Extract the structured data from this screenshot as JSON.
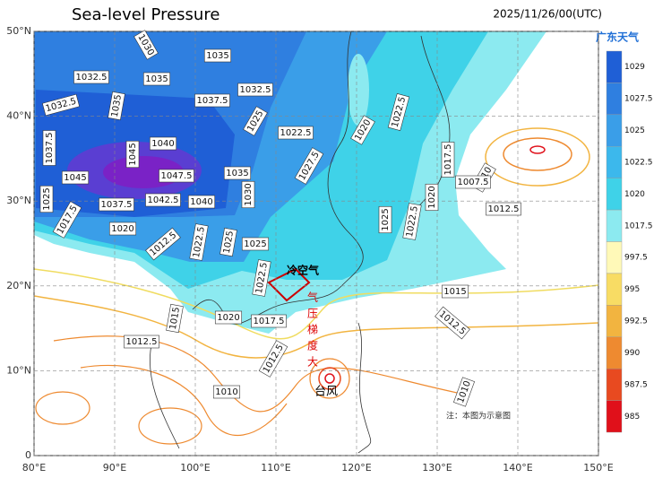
{
  "header": {
    "title": "Sea-level Pressure",
    "time": "2025/11/26/00(UTC)",
    "logo": "广东天气"
  },
  "map": {
    "lon_ticks": [
      {
        "value": 80,
        "label": "80°E"
      },
      {
        "value": 90,
        "label": "90°E"
      },
      {
        "value": 100,
        "label": "100°E"
      },
      {
        "value": 110,
        "label": "110°E"
      },
      {
        "value": 120,
        "label": "120°E"
      },
      {
        "value": 130,
        "label": "130°E"
      },
      {
        "value": 140,
        "label": "140°E"
      },
      {
        "value": 150,
        "label": "150°E"
      }
    ],
    "lat_ticks": [
      {
        "value": 50,
        "label": "50°N"
      },
      {
        "value": 40,
        "label": "40°N"
      },
      {
        "value": 30,
        "label": "30°N"
      },
      {
        "value": 20,
        "label": "20°N"
      },
      {
        "value": 10,
        "label": "10°N"
      },
      0
    ],
    "lonlim": [
      80,
      150
    ],
    "latlim": [
      0,
      50
    ],
    "contour_labels": [
      1030,
      1035,
      1032.5,
      1035,
      1032.5,
      1035,
      1037.5,
      1032.5,
      1025,
      1022.5,
      1020,
      1022.5,
      1037.5,
      1045,
      1040,
      1045,
      1047.5,
      1035,
      1027.5,
      1030,
      1017.5,
      1010,
      1007.5,
      1020,
      1025,
      1037.5,
      1042.5,
      1040,
      1012.5,
      1025,
      1022.5,
      1017.5,
      1020,
      1012.5,
      1022.5,
      1025,
      1025,
      1022.5,
      1015,
      1020,
      1017.5,
      1015,
      1012.5,
      1012.5,
      1012.5,
      1010,
      1010
    ],
    "annotations": {
      "cold_air": "冷空气",
      "gradient": "气压梯度大",
      "typhoon": "台风",
      "note": "注：本图为示意图"
    }
  },
  "colorbar": {
    "labels": [
      1029,
      1027.5,
      1025,
      1022.5,
      1020,
      1017.5,
      997.5,
      995,
      992.5,
      990,
      987.5,
      985
    ],
    "colors": [
      "#1f5fd6",
      "#2f7fe0",
      "#3a9ee8",
      "#3cb8ec",
      "#3fd2e8",
      "#8ceaf0",
      "#fff9b8",
      "#f8dc64",
      "#f2b440",
      "#ee8a30",
      "#e84a20",
      "#e0101a"
    ]
  }
}
